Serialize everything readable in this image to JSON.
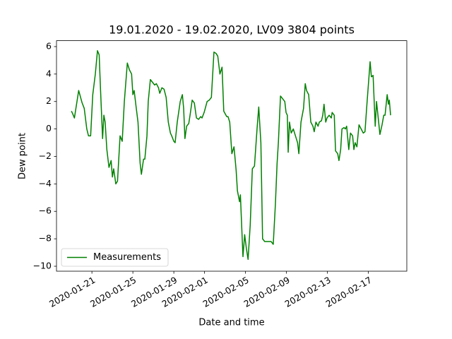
{
  "chart_data": {
    "type": "line",
    "title": "19.01.2020 - 19.02.2020, LV09 3804 points",
    "x_label": "Date and time",
    "y_label": "Dew point",
    "legend": "lower left",
    "xlim": [
      "2020-01-17 13:00",
      "2020-02-20 18:00"
    ],
    "xticks": [
      "2020-01-21",
      "2020-01-25",
      "2020-01-29",
      "2020-02-01",
      "2020-02-05",
      "2020-02-09",
      "2020-02-13",
      "2020-02-17"
    ],
    "ylim": [
      -10.36,
      6.43
    ],
    "yticks": [
      {
        "value": -10,
        "label": "−10"
      },
      {
        "value": -8,
        "label": "−8"
      },
      {
        "value": -6,
        "label": "−6"
      },
      {
        "value": -4,
        "label": "−4"
      },
      {
        "value": -2,
        "label": "−2"
      },
      0,
      2,
      4,
      6
    ],
    "x": [
      "2020-01-19 00:00",
      "2020-01-19 03:00",
      "2020-01-19 07:00",
      "2020-01-19 17:00",
      "2020-01-20 01:00",
      "2020-01-20 06:00",
      "2020-01-20 12:00",
      "2020-01-20 16:00",
      "2020-01-20 21:00",
      "2020-01-21 02:00",
      "2020-01-21 08:00",
      "2020-01-21 13:00",
      "2020-01-21 17:00",
      "2020-01-21 20:00",
      "2020-01-22 01:00",
      "2020-01-22 04:00",
      "2020-01-22 07:00",
      "2020-01-22 11:00",
      "2020-01-22 16:00",
      "2020-01-22 21:00",
      "2020-01-23 00:00",
      "2020-01-23 03:00",
      "2020-01-23 08:00",
      "2020-01-23 12:00",
      "2020-01-23 18:00",
      "2020-01-23 23:00",
      "2020-01-24 04:00",
      "2020-01-24 11:00",
      "2020-01-24 16:00",
      "2020-01-24 21:00",
      "2020-01-25 00:00",
      "2020-01-25 03:00",
      "2020-01-25 08:00",
      "2020-01-25 12:00",
      "2020-01-25 17:00",
      "2020-01-25 20:00",
      "2020-01-26 01:00",
      "2020-01-26 04:00",
      "2020-01-26 09:00",
      "2020-01-26 12:00",
      "2020-01-26 17:00",
      "2020-01-26 22:00",
      "2020-01-27 03:00",
      "2020-01-27 07:00",
      "2020-01-27 12:00",
      "2020-01-27 15:00",
      "2020-01-27 20:00",
      "2020-01-28 01:00",
      "2020-01-28 06:00",
      "2020-01-28 11:00",
      "2020-01-28 16:00",
      "2020-01-28 19:00",
      "2020-01-29 00:00",
      "2020-01-29 03:00",
      "2020-01-29 08:00",
      "2020-01-29 15:00",
      "2020-01-29 20:00",
      "2020-01-29 23:00",
      "2020-01-30 02:00",
      "2020-01-30 06:00",
      "2020-01-30 11:00",
      "2020-01-30 14:00",
      "2020-01-30 19:00",
      "2020-01-31 00:00",
      "2020-01-31 05:00",
      "2020-01-31 10:00",
      "2020-01-31 15:00",
      "2020-01-31 18:00",
      "2020-01-31 23:00",
      "2020-02-01 06:00",
      "2020-02-01 11:00",
      "2020-02-01 16:00",
      "2020-02-01 22:00",
      "2020-02-02 03:00",
      "2020-02-02 07:00",
      "2020-02-02 12:00",
      "2020-02-02 17:00",
      "2020-02-02 21:00",
      "2020-02-03 04:00",
      "2020-02-03 07:00",
      "2020-02-03 11:00",
      "2020-02-03 16:00",
      "2020-02-03 21:00",
      "2020-02-04 02:00",
      "2020-02-04 05:00",
      "2020-02-04 10:00",
      "2020-02-04 12:00",
      "2020-02-04 18:00",
      "2020-02-04 22:00",
      "2020-02-05 02:00",
      "2020-02-05 06:00",
      "2020-02-05 11:00",
      "2020-02-05 16:00",
      "2020-02-05 21:00",
      "2020-02-06 03:00",
      "2020-02-06 07:00",
      "2020-02-06 12:00",
      "2020-02-06 16:00",
      "2020-02-06 21:00",
      "2020-02-07 06:00",
      "2020-02-07 12:00",
      "2020-02-07 17:00",
      "2020-02-07 22:00",
      "2020-02-08 02:00",
      "2020-02-08 05:00",
      "2020-02-08 10:00",
      "2020-02-08 15:00",
      "2020-02-08 20:00",
      "2020-02-08 23:00",
      "2020-02-09 02:00",
      "2020-02-09 04:00",
      "2020-02-09 07:00",
      "2020-02-09 11:00",
      "2020-02-09 16:00",
      "2020-02-09 21:00",
      "2020-02-10 02:00",
      "2020-02-10 05:00",
      "2020-02-10 10:00",
      "2020-02-10 16:00",
      "2020-02-10 20:00",
      "2020-02-10 23:00",
      "2020-02-11 04:00",
      "2020-02-11 09:00",
      "2020-02-11 14:00",
      "2020-02-11 17:00",
      "2020-02-11 21:00",
      "2020-02-12 02:00",
      "2020-02-12 05:00",
      "2020-02-12 10:00",
      "2020-02-12 13:00",
      "2020-02-12 16:00",
      "2020-02-12 20:00",
      "2020-02-12 23:00",
      "2020-02-13 04:00",
      "2020-02-13 09:00",
      "2020-02-13 11:00",
      "2020-02-13 16:00",
      "2020-02-13 19:00",
      "2020-02-14 00:00",
      "2020-02-14 03:00",
      "2020-02-14 07:00",
      "2020-02-14 10:00",
      "2020-02-14 15:00",
      "2020-02-14 18:00",
      "2020-02-14 21:00",
      "2020-02-15 02:00",
      "2020-02-15 06:00",
      "2020-02-15 11:00",
      "2020-02-15 14:00",
      "2020-02-15 17:00",
      "2020-02-15 21:00",
      "2020-02-16 02:00",
      "2020-02-16 07:00",
      "2020-02-16 12:00",
      "2020-02-16 16:00",
      "2020-02-16 21:00",
      "2020-02-17 04:00",
      "2020-02-17 07:00",
      "2020-02-17 11:00",
      "2020-02-17 16:00",
      "2020-02-17 19:00",
      "2020-02-18 00:00",
      "2020-02-18 03:00",
      "2020-02-18 08:00",
      "2020-02-18 12:00",
      "2020-02-18 15:00",
      "2020-02-18 20:00",
      "2020-02-18 23:00",
      "2020-02-19 01:00",
      "2020-02-19 04:00"
    ],
    "series": [
      {
        "name": "Measurements",
        "color": "#008000",
        "values": [
          1.3,
          1.1,
          0.8,
          2.8,
          1.9,
          1.5,
          0,
          -0.5,
          -0.5,
          2.5,
          4,
          5.7,
          5.4,
          3,
          -0.7,
          1,
          0.5,
          -1.5,
          -2.8,
          -2.3,
          -3.5,
          -2.9,
          -4,
          -3.8,
          -0.5,
          -0.9,
          2,
          4.8,
          4.3,
          4,
          2.5,
          2.8,
          1.5,
          0.5,
          -2.5,
          -3.3,
          -2.2,
          -2.2,
          -0.5,
          2,
          3.6,
          3.4,
          3.2,
          3.3,
          3,
          2.6,
          3,
          2.9,
          2.3,
          0.5,
          -0.3,
          -0.5,
          -0.9,
          -1,
          0.5,
          2,
          2.5,
          1.5,
          -0.7,
          0.2,
          0.4,
          1,
          2.1,
          1.9,
          0.8,
          0.7,
          0.9,
          0.8,
          1.2,
          2,
          2.1,
          2.3,
          5.6,
          5.5,
          5.3,
          4,
          4.5,
          1.3,
          0.9,
          0.9,
          0.5,
          -1.8,
          -1.3,
          -3,
          -4.5,
          -5.3,
          -4.8,
          -9.3,
          -7.7,
          -8.7,
          -9.5,
          -7,
          -2.9,
          -2.7,
          0,
          1.6,
          -1,
          -8,
          -8.2,
          -8.2,
          -8.2,
          -8.4,
          -5.5,
          -2.5,
          -1,
          2.4,
          2.2,
          2,
          1.2,
          1,
          -1.7,
          0.5,
          -0.3,
          0,
          -0.5,
          -1,
          -1.8,
          0.5,
          1.5,
          3.3,
          2.8,
          2.5,
          0.5,
          0.2,
          -0.2,
          0.5,
          0.2,
          0.5,
          0.6,
          1,
          1.8,
          0.5,
          0.8,
          1,
          0.8,
          1.2,
          1,
          -1.6,
          -1.8,
          -2.3,
          -1.5,
          0,
          0.1,
          0,
          0.2,
          -1.5,
          -0.3,
          -0.5,
          -1.5,
          -1,
          -1.3,
          0.3,
          0,
          -0.3,
          -0.2,
          2,
          4.9,
          3.8,
          3.9,
          0.2,
          2,
          0.5,
          -0.4,
          0.3,
          1,
          1,
          2.5,
          1.8,
          2.1,
          1
        ]
      }
    ]
  }
}
